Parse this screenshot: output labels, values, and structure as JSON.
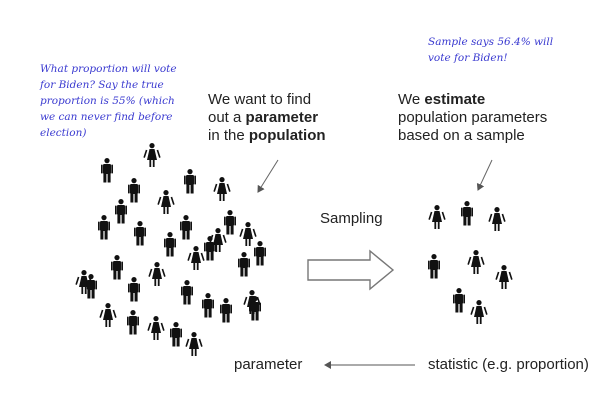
{
  "notes": {
    "left": [
      "What proportion will vote",
      "for Biden?  Say the true",
      "proportion is 55% (which",
      "we can never find before",
      "election)"
    ],
    "right": [
      "Sample says 56.4% will",
      "vote for Biden!"
    ]
  },
  "headings": {
    "population": {
      "line1": "We want to find",
      "line2_pre": "out a ",
      "line2_bold": "parameter",
      "line3_pre": "in the ",
      "line3_bold": "population"
    },
    "sample": {
      "line1_pre": "We ",
      "line1_bold": "estimate",
      "line2": "population parameters",
      "line3": "based on a sample"
    }
  },
  "labels": {
    "sampling": "Sampling",
    "parameter": "parameter",
    "statistic": "statistic (e.g. proportion)"
  },
  "colors": {
    "note_ink": "#3a3ad0",
    "figure": "#111111",
    "arrow_stroke": "#777777",
    "arrow_fill": "#ffffff"
  },
  "figure_counts": {
    "population": 33,
    "sample": 8
  }
}
